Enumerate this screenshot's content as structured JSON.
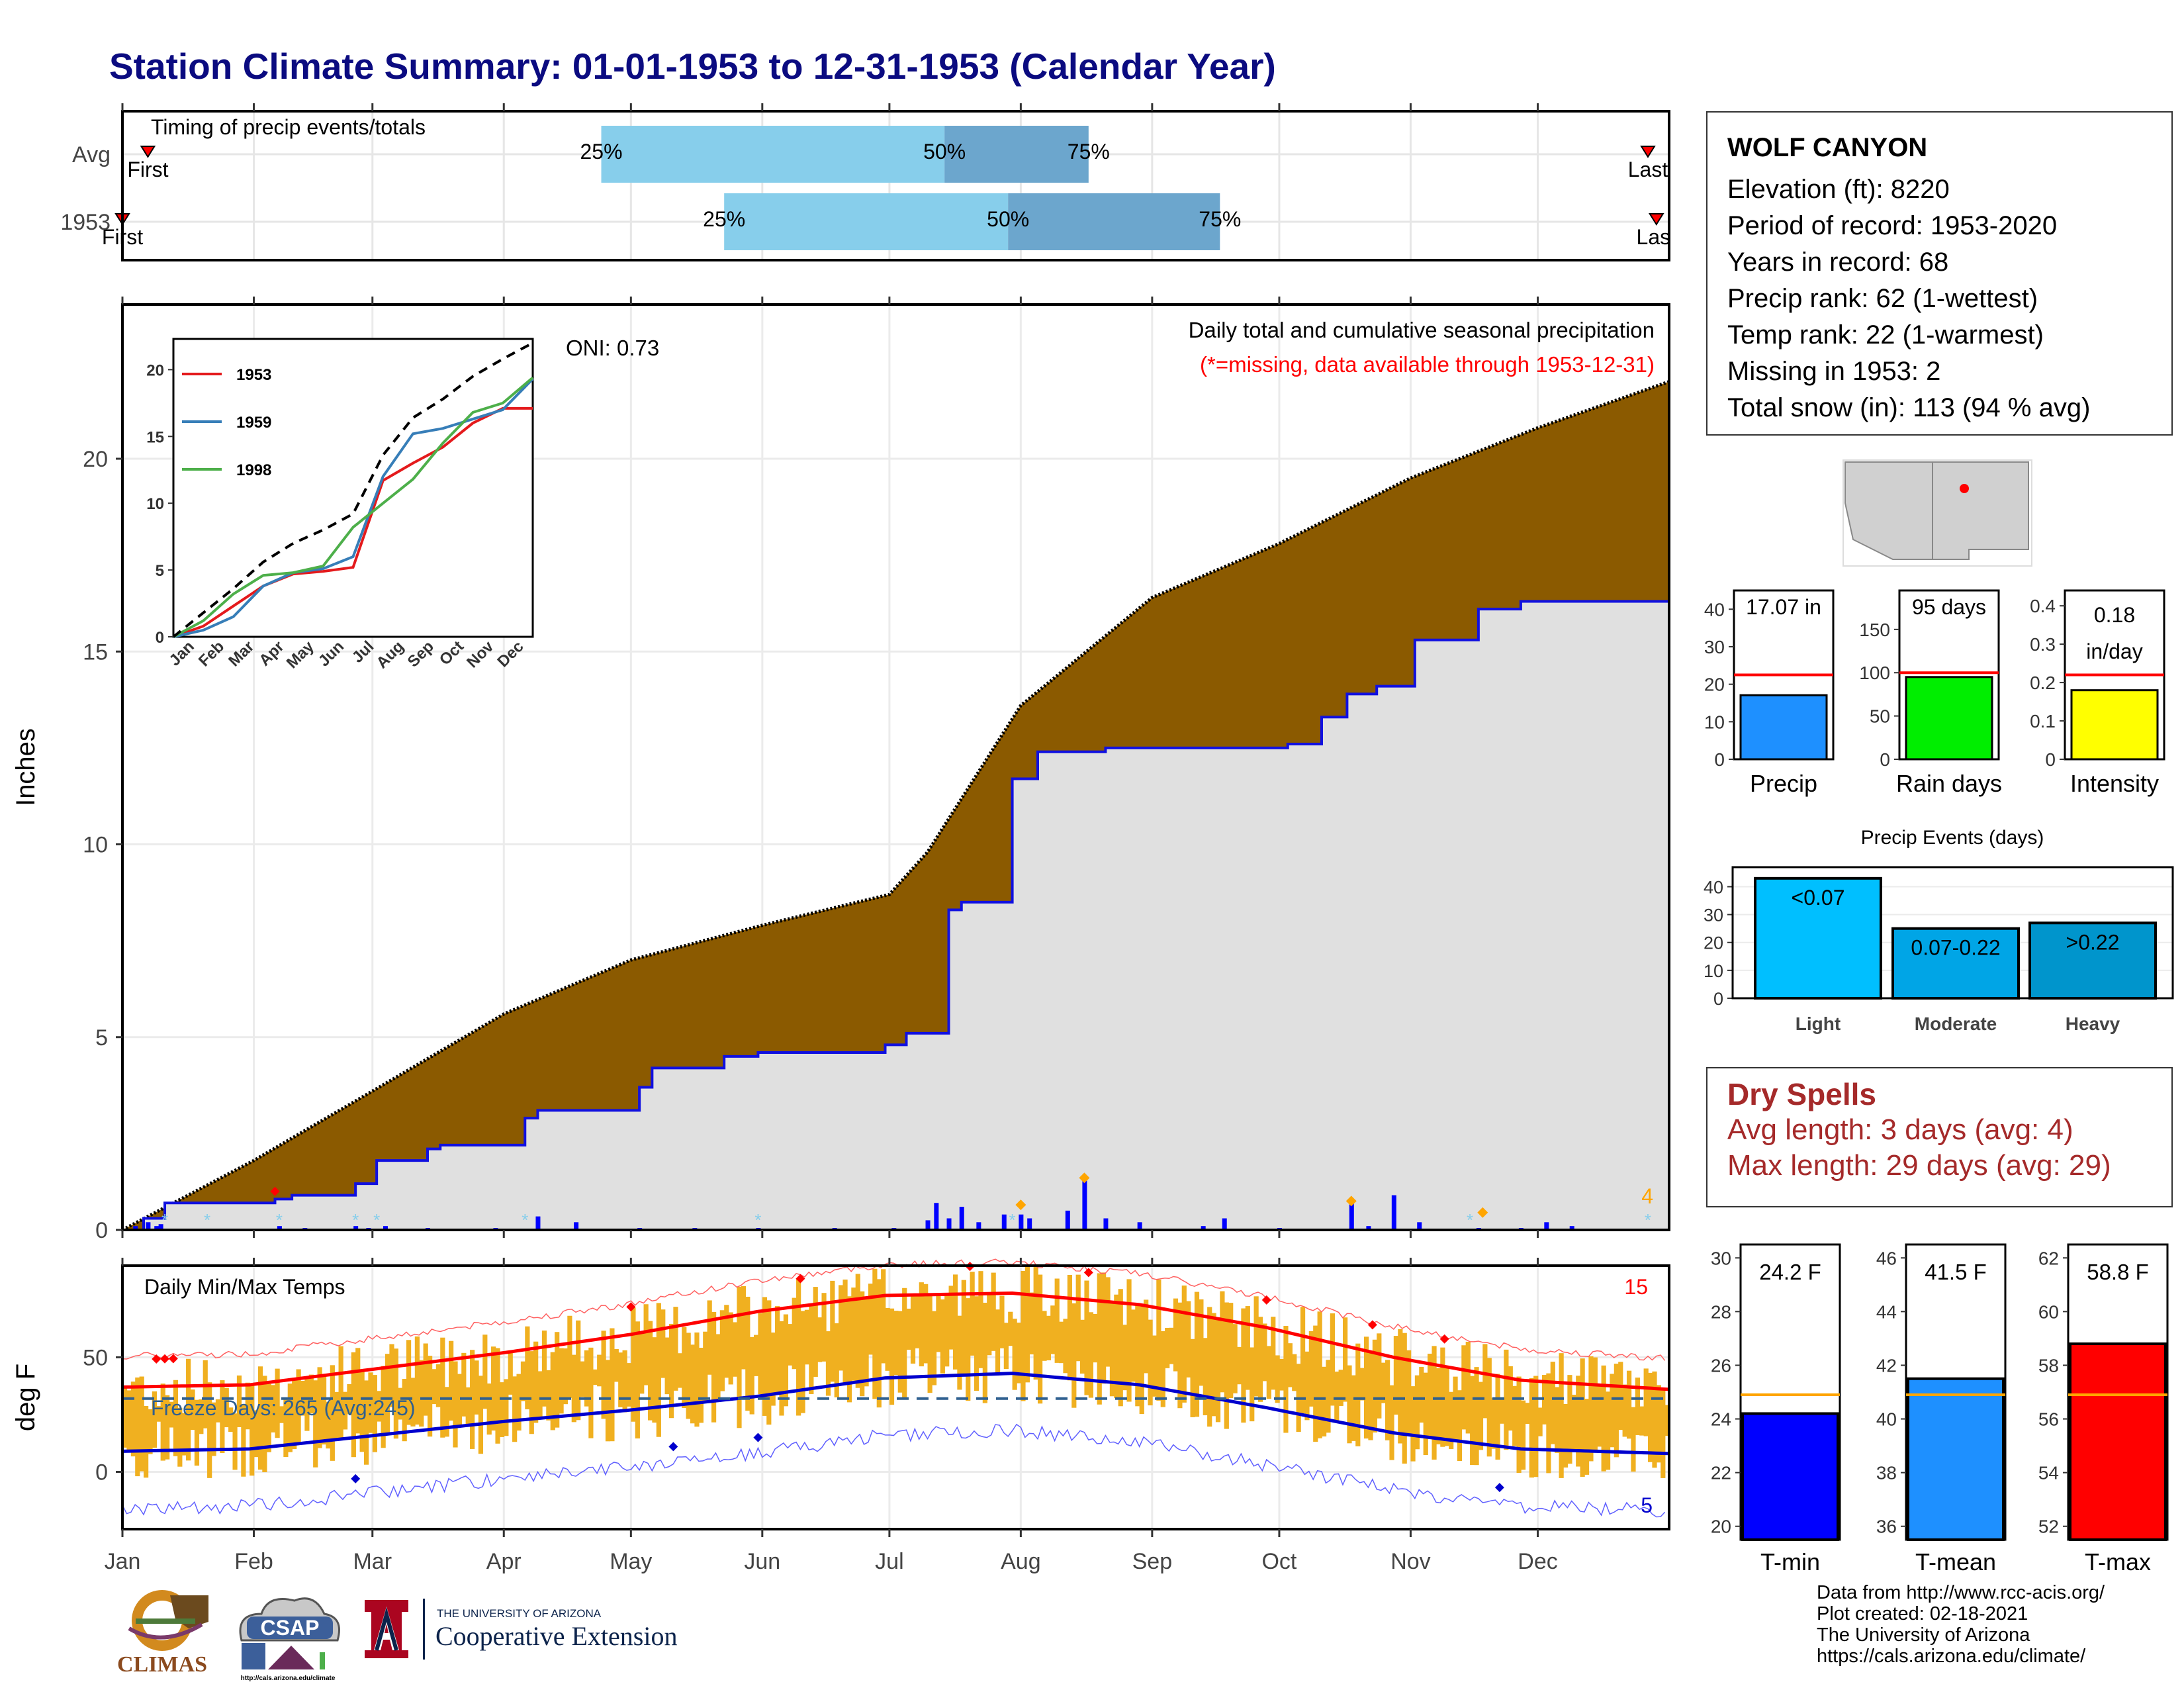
{
  "title": "Station Climate Summary: 01-01-1953 to 12-31-1953 (Calendar Year)",
  "colors": {
    "title": "#0b0b80",
    "precip_fill": "#8b5a00",
    "record_fill": "#e0e0e0",
    "precip_line": "#1010e0",
    "tmax_line": "#ff0000",
    "tmin_line": "#0000cd",
    "temp_bar": "#f0b020",
    "timing_light": "#87ceeb",
    "timing_dark": "#6ca6cd",
    "dry_text": "#a52a2a"
  },
  "info": {
    "station": "WOLF CANYON",
    "elevation": "Elevation (ft): 8220",
    "period": "Period of record: 1953-2020",
    "years": "Years in record: 68",
    "precip_rank": "Precip rank: 62 (1-wettest)",
    "temp_rank": "Temp rank: 22 (1-warmest)",
    "missing": "Missing in 1953: 2",
    "snow": "Total snow (in): 113 (94 % avg)"
  },
  "dry": {
    "title": "Dry Spells",
    "avg": "Avg length: 3 days (avg: 4)",
    "max": "Max length: 29 days (avg: 29)"
  },
  "source": {
    "l1": "Data from http://www.rcc-acis.org/",
    "l2": "Plot created: 02-18-2021",
    "l3": "The University of Arizona",
    "l4": "https://cals.arizona.edu/climate/"
  },
  "logos": {
    "climas": "CLIMAS",
    "csap": "CSAP",
    "ua_small": "THE UNIVERSITY OF ARIZONA",
    "ua_big": "Cooperative Extension",
    "csap_url": "http://cals.arizona.edu/climate"
  },
  "chart_data": [
    {
      "type": "bar",
      "panel": "timing",
      "title": "Timing of precip events/totals",
      "categories": [
        "Avg",
        "1953"
      ],
      "series": [
        {
          "name": "Avg",
          "p25": "Apr 24",
          "p50": "Jul 14",
          "p75": "Aug 17",
          "first_label": "First",
          "last_label": "Last"
        },
        {
          "name": "1953",
          "p25": "May 23",
          "p50": "Jul 29",
          "p75": "Sep 17",
          "first_label": "First",
          "last_label": "Last"
        }
      ],
      "pct_labels": [
        "25%",
        "50%",
        "75%"
      ]
    },
    {
      "type": "area",
      "panel": "precip",
      "title": "Daily total and cumulative seasonal precipitation",
      "subtitle": "(*=missing, data available through 1953-12-31)",
      "ylabel": "Inches",
      "ylim": [
        0,
        24
      ],
      "yticks": [
        0,
        5,
        10,
        15,
        20
      ],
      "xticks": [
        "Jan",
        "Feb",
        "Mar",
        "Apr",
        "May",
        "Jun",
        "Jul",
        "Aug",
        "Sep",
        "Oct",
        "Nov",
        "Dec"
      ],
      "oni": "ONI: 0.73",
      "corner_count": "4",
      "avg_cumulative": {
        "day": [
          0,
          31,
          59,
          90,
          120,
          151,
          181,
          190,
          212,
          243,
          273,
          304,
          334,
          365
        ],
        "value": [
          0,
          1.8,
          3.6,
          5.6,
          7.0,
          7.9,
          8.7,
          9.8,
          13.6,
          16.4,
          17.8,
          19.5,
          20.8,
          22.0
        ]
      },
      "obs_cumulative": {
        "day": [
          0,
          5,
          10,
          36,
          40,
          55,
          60,
          72,
          75,
          95,
          98,
          122,
          125,
          142,
          150,
          180,
          185,
          195,
          198,
          210,
          216,
          232,
          240,
          275,
          283,
          289,
          296,
          305,
          320,
          330,
          365
        ],
        "value": [
          0,
          0.3,
          0.7,
          0.8,
          0.9,
          1.2,
          1.8,
          2.1,
          2.2,
          2.9,
          3.1,
          3.7,
          4.2,
          4.5,
          4.6,
          4.8,
          5.1,
          8.3,
          8.5,
          11.7,
          12.4,
          12.5,
          12.5,
          12.6,
          13.3,
          13.9,
          14.1,
          15.3,
          16.1,
          16.3,
          17.1
        ]
      },
      "daily_precip": {
        "day": [
          3,
          6,
          8,
          9,
          37,
          43,
          55,
          58,
          62,
          72,
          88,
          98,
          107,
          122,
          135,
          150,
          168,
          182,
          190,
          192,
          195,
          198,
          202,
          208,
          212,
          214,
          223,
          227,
          232,
          240,
          255,
          260,
          273,
          290,
          294,
          300,
          306,
          320,
          330,
          336,
          342
        ],
        "value": [
          0.1,
          0.2,
          0.1,
          0.15,
          0.1,
          0.05,
          0.1,
          0.05,
          0.1,
          0.05,
          0.05,
          0.35,
          0.2,
          0.05,
          0.05,
          0.05,
          0.05,
          0.05,
          0.25,
          0.7,
          0.3,
          0.6,
          0.2,
          0.4,
          0.4,
          0.3,
          0.5,
          1.3,
          0.3,
          0.2,
          0.1,
          0.3,
          0.05,
          0.7,
          0.1,
          0.9,
          0.2,
          0.05,
          0.05,
          0.2,
          0.1
        ]
      },
      "inset": {
        "yticks": [
          0,
          5,
          10,
          15,
          20
        ],
        "xticks": [
          "Jan",
          "Feb",
          "Mar",
          "Apr",
          "May",
          "Jun",
          "Jul",
          "Aug",
          "Sep",
          "Oct",
          "Nov",
          "Dec"
        ],
        "series": [
          {
            "name": "1953",
            "color": "#e41a1c",
            "x": [
              0,
              1,
              2,
              3,
              4,
              5,
              6,
              7,
              8,
              9,
              10,
              11,
              12
            ],
            "y": [
              0,
              0.8,
              2.3,
              3.8,
              4.7,
              4.9,
              5.2,
              11.7,
              13.0,
              14.2,
              16.0,
              17.1,
              17.1
            ]
          },
          {
            "name": "1959",
            "color": "#377eb8",
            "x": [
              0,
              1,
              2,
              3,
              4,
              5,
              6,
              7,
              8,
              9,
              10,
              11,
              12
            ],
            "y": [
              0,
              0.5,
              1.5,
              3.8,
              4.8,
              5.1,
              6.0,
              12.0,
              15.2,
              15.6,
              16.3,
              17.0,
              19.3
            ]
          },
          {
            "name": "1998",
            "color": "#4daf4a",
            "x": [
              0,
              1,
              2,
              3,
              4,
              5,
              6,
              7,
              8,
              9,
              10,
              11,
              12
            ],
            "y": [
              0,
              1.2,
              3.2,
              4.6,
              4.8,
              5.3,
              8.2,
              10.0,
              11.8,
              14.5,
              16.8,
              17.5,
              19.4
            ]
          },
          {
            "name": "avg",
            "color": "#000000",
            "x": [
              0,
              1,
              2,
              3,
              4,
              5,
              6,
              7,
              8,
              9,
              10,
              11,
              12
            ],
            "y": [
              0,
              1.8,
              3.6,
              5.6,
              7.0,
              8.0,
              9.2,
              13.6,
              16.4,
              17.8,
              19.5,
              20.8,
              22.0
            ]
          }
        ]
      }
    },
    {
      "type": "line",
      "panel": "temps",
      "title": "Daily Min/Max Temps",
      "ylabel": "deg F",
      "yticks": [
        0,
        50
      ],
      "ylim": [
        -25,
        90
      ],
      "xticks": [
        "Jan",
        "Feb",
        "Mar",
        "Apr",
        "May",
        "Jun",
        "Jul",
        "Aug",
        "Sep",
        "Oct",
        "Nov",
        "Dec"
      ],
      "freeze_label": "Freeze Days: 265 (Avg:245)",
      "freeze_line": 32,
      "record_high_count": "15",
      "record_low_count": "5",
      "avg_tmax": {
        "day": [
          0,
          30,
          60,
          90,
          120,
          150,
          180,
          210,
          240,
          270,
          300,
          330,
          365
        ],
        "value": [
          37,
          38,
          45,
          52,
          60,
          70,
          77,
          78,
          73,
          63,
          50,
          40,
          36
        ]
      },
      "avg_tmin": {
        "day": [
          0,
          30,
          60,
          90,
          120,
          150,
          180,
          210,
          240,
          270,
          300,
          330,
          365
        ],
        "value": [
          9,
          10,
          16,
          22,
          27,
          33,
          41,
          43,
          38,
          28,
          17,
          10,
          8
        ]
      }
    },
    {
      "type": "bar",
      "panel": "precip-summary",
      "categories": [
        "Precip",
        "Rain days",
        "Intensity"
      ],
      "values": [
        17.07,
        95,
        0.18
      ],
      "labels": [
        "17.07 in",
        "95 days",
        "0.18 in/day"
      ],
      "averages": [
        22.5,
        100,
        0.22
      ],
      "ylims": [
        [
          0,
          45
        ],
        [
          0,
          195
        ],
        [
          0,
          0.44
        ]
      ],
      "yticks": [
        [
          0,
          10,
          20,
          30,
          40
        ],
        [
          0,
          50,
          100,
          150
        ],
        [
          0.0,
          0.1,
          0.2,
          0.3,
          0.4
        ]
      ],
      "bar_colors": [
        "#1e90ff",
        "#00ee00",
        "#ffff00"
      ]
    },
    {
      "type": "bar",
      "panel": "precip-events",
      "title": "Precip Events (days)",
      "categories": [
        "Light",
        "Moderate",
        "Heavy"
      ],
      "values": [
        43,
        25,
        27
      ],
      "labels": [
        "<0.07",
        "0.07-0.22",
        ">0.22"
      ],
      "ylim": [
        0,
        47
      ],
      "yticks": [
        0,
        10,
        20,
        30,
        40
      ],
      "bar_colors": [
        "#00bfff",
        "#00a5e6",
        "#0095cc"
      ]
    },
    {
      "type": "bar",
      "panel": "temp-summary",
      "categories": [
        "T-min",
        "T-mean",
        "T-max"
      ],
      "values": [
        24.2,
        41.5,
        58.8
      ],
      "labels": [
        "24.2 F",
        "41.5 F",
        "58.8 F"
      ],
      "averages": [
        24.9,
        40.9,
        56.9
      ],
      "ylims": [
        [
          19.5,
          30.5
        ],
        [
          35.5,
          46.5
        ],
        [
          51.5,
          62.5
        ]
      ],
      "yticks": [
        [
          20,
          22,
          24,
          26,
          28,
          30
        ],
        [
          36,
          38,
          40,
          42,
          44,
          46
        ],
        [
          52,
          54,
          56,
          58,
          60,
          62
        ]
      ],
      "bar_colors": [
        "#0000ff",
        "#1e90ff",
        "#ff0000"
      ]
    }
  ]
}
